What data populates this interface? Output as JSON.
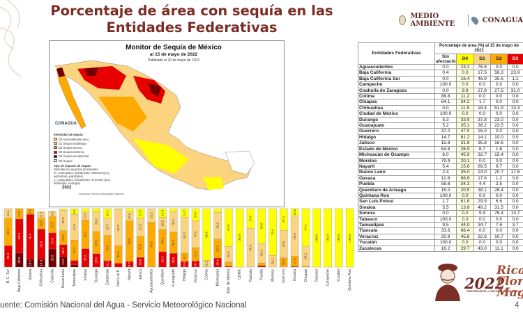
{
  "title_line1": "Porcentaje de área con sequía en las",
  "title_line2": "Entidades Federativas",
  "logos": {
    "medio_ambiente": "MEDIO AMBIENTE",
    "conagua": "CONAGUA"
  },
  "map": {
    "title": "Monitor de Sequía de México",
    "subtitle": "al 15 de mayo de 2022",
    "published": "Publicado el 20 de mayo de 2022",
    "logo": "CONAGUA",
    "legend_title": "Intensidad de sequía:",
    "legend": [
      {
        "label": "D0 Anormalmente seco",
        "color": "#ffff00"
      },
      {
        "label": "D1 Sequía moderada",
        "color": "#fcd37f"
      },
      {
        "label": "D2 Sequía severa",
        "color": "#ffaa00"
      },
      {
        "label": "D3 Sequía extrema",
        "color": "#e60000"
      },
      {
        "label": "D4 Sequía excepcional",
        "color": "#730000"
      },
      {
        "label": "D0 Sequía",
        "color": "#ffffff"
      }
    ],
    "impact_title": "Tipo de impacto de sequía:",
    "impacts": [
      "Delimitación impactos dominantes",
      "S= Corto plazo, típicamente <6meses (p.ej. agricultura, pastizales)",
      "L= Largo plazo, típicamente >6 meses (p.ej. hidrología, ecología)"
    ],
    "year": "2022",
    "credit": "Elaboración: Servicio Meteorológico Nacional"
  },
  "table": {
    "col_entity": "Entidades Federativas",
    "col_group": "Porcentaje de área (%) al 15 de mayo de 2022",
    "col_sin": "Sin afectación",
    "cols": [
      "D0",
      "D1",
      "D2",
      "D3"
    ],
    "rows": [
      [
        "Aguascalientes",
        "0.0",
        "23.2",
        "76.8",
        "0.0",
        "0.0"
      ],
      [
        "Baja California",
        "0.4",
        "0.0",
        "17.5",
        "58.3",
        "23.9"
      ],
      [
        "Baja California Sur",
        "0.0",
        "16.4",
        "46.9",
        "35.6",
        "1.1"
      ],
      [
        "Campeche",
        "100.0",
        "0.0",
        "0.0",
        "0.0",
        "0.0"
      ],
      [
        "Coahuila de Zaragoza",
        "0.0",
        "9.9",
        "27.8",
        "27.5",
        "31.0"
      ],
      [
        "Colima",
        "88.8",
        "11.2",
        "0.0",
        "0.0",
        "0.0"
      ],
      [
        "Chiapas",
        "64.1",
        "34.2",
        "1.7",
        "0.0",
        "0.0"
      ],
      [
        "Chihuahua",
        "0.0",
        "11.5",
        "18.4",
        "51.9",
        "13.3"
      ],
      [
        "Ciudad de México",
        "100.0",
        "0.0",
        "0.0",
        "0.0",
        "0.0"
      ],
      [
        "Durango",
        "5.3",
        "33.9",
        "37.8",
        "23.0",
        "0.0"
      ],
      [
        "Guanajuato",
        "5.2",
        "35.1",
        "36.2",
        "23.5",
        "0.0"
      ],
      [
        "Guerrero",
        "37.0",
        "47.0",
        "16.0",
        "0.0",
        "0.0"
      ],
      [
        "Hidalgo",
        "14.7",
        "61.2",
        "14.1",
        "10.0",
        "0.0"
      ],
      [
        "Jalisco",
        "15.8",
        "31.8",
        "35.8",
        "16.6",
        "0.0"
      ],
      [
        "Estado de México",
        "64.8",
        "26.9",
        "6.7",
        "1.6",
        "0.0"
      ],
      [
        "Michoacán de Ocampo",
        "6.0",
        "45.9",
        "32.7",
        "15.4",
        "0.0"
      ],
      [
        "Morelos",
        "79.9",
        "20.1",
        "0.0",
        "0.0",
        "0.0"
      ],
      [
        "Nayarit",
        "5.4",
        "15.6",
        "69.5",
        "9.7",
        "0.0"
      ],
      [
        "Nuevo León",
        "2.4",
        "35.0",
        "24.0",
        "20.7",
        "17.6"
      ],
      [
        "Oaxaca",
        "12.6",
        "68.6",
        "17.6",
        "1.2",
        "0.0"
      ],
      [
        "Puebla",
        "58.8",
        "34.3",
        "4.4",
        "2.5",
        "0.0"
      ],
      [
        "Querétaro de Arteaga",
        "15.0",
        "20.5",
        "38.1",
        "26.4",
        "0.0"
      ],
      [
        "Quintana Roo",
        "100.0",
        "0.0",
        "0.0",
        "0.0",
        "0.0"
      ],
      [
        "San Luis Potosí",
        "1.7",
        "61.8",
        "29.9",
        "6.6",
        "0.0"
      ],
      [
        "Sinaloa",
        "5.5",
        "13.8",
        "49.2",
        "31.5",
        "0.0"
      ],
      [
        "Sonora",
        "0.0",
        "0.0",
        "9.9",
        "76.4",
        "13.7"
      ],
      [
        "Tabasco",
        "100.0",
        "0.0",
        "0.0",
        "0.0",
        "0.0"
      ],
      [
        "Tamaulipas",
        "9.5",
        "44.0",
        "34.7",
        "7.6",
        "3.7"
      ],
      [
        "Tlaxcala",
        "33.6",
        "66.4",
        "0.0",
        "0.0",
        "0.0"
      ],
      [
        "Veracruz",
        "20.9",
        "45.8",
        "22.6",
        "10.7",
        "0.0"
      ],
      [
        "Yucatán",
        "100.0",
        "0.0",
        "0.0",
        "0.0",
        "0.0"
      ],
      [
        "Zacatecas",
        "16.2",
        "29.7",
        "43.0",
        "11.1",
        "0.0"
      ]
    ]
  },
  "chart_data": {
    "type": "bar",
    "stacked": true,
    "categories": [
      "B. C. Sur",
      "Baja California",
      "Sonora",
      "Chihuahua",
      "Coahuila",
      "Nuevo León",
      "Tamaulipas",
      "Sinaloa",
      "Durango",
      "Zacatecas",
      "San Luis P.",
      "Nayarit",
      "Jalisco",
      "Aguascalientes",
      "Querétaro",
      "Guanajuato",
      "Hidalgo",
      "Veracruz",
      "Colima",
      "Michoacán",
      "Edo. de México",
      "CDMX",
      "Tlaxcala",
      "Puebla",
      "Morelos",
      "Guerrero",
      "Oaxaca",
      "Chiapas",
      "Tabasco",
      "Campeche",
      "Yucatán",
      "Quintana Roo"
    ],
    "series": [
      {
        "name": "D4",
        "color": "#730000",
        "values": [
          1.1,
          23.9,
          13.7,
          13.3,
          31.0,
          17.6,
          3.7,
          0,
          0,
          0,
          0,
          0,
          0,
          0,
          0,
          0,
          0,
          0,
          0,
          0,
          0,
          0,
          0,
          0,
          0,
          0,
          0,
          0,
          0,
          0,
          0,
          0
        ]
      },
      {
        "name": "D3",
        "color": "#e60000",
        "values": [
          35.6,
          58.3,
          76.4,
          51.9,
          27.5,
          20.7,
          7.6,
          31.5,
          23.0,
          11.1,
          6.6,
          9.7,
          16.6,
          0,
          26.4,
          23.5,
          10.0,
          10.7,
          0,
          15.4,
          1.6,
          0,
          0,
          2.5,
          0,
          0,
          1.2,
          0,
          0,
          0,
          0,
          0
        ]
      },
      {
        "name": "D2",
        "color": "#ffaa00",
        "values": [
          46.9,
          17.5,
          9.9,
          18.4,
          27.8,
          24.0,
          34.7,
          49.2,
          37.8,
          43.0,
          29.9,
          69.5,
          35.8,
          76.8,
          38.1,
          36.2,
          14.1,
          22.6,
          0,
          32.7,
          6.7,
          0,
          0,
          4.4,
          0,
          16.0,
          17.6,
          1.7,
          0,
          0,
          0,
          0
        ]
      },
      {
        "name": "D1",
        "color": "#fcd37f",
        "values": [
          16.4,
          0,
          0,
          11.5,
          9.9,
          35.0,
          44.0,
          13.8,
          33.9,
          29.7,
          61.8,
          15.6,
          31.8,
          23.2,
          20.5,
          35.1,
          61.2,
          45.8,
          11.2,
          45.9,
          26.9,
          0,
          66.4,
          34.3,
          20.1,
          47.0,
          68.6,
          34.2,
          0,
          0,
          0,
          0
        ]
      },
      {
        "name": "D0",
        "color": "#ffff00",
        "values": [
          0,
          0.4,
          0,
          0,
          0,
          2.4,
          9.5,
          5.5,
          5.3,
          16.2,
          1.7,
          5.4,
          15.8,
          0,
          15.0,
          5.2,
          14.7,
          20.9,
          88.8,
          6.0,
          64.8,
          100.0,
          33.6,
          58.8,
          79.9,
          37.0,
          12.6,
          64.1,
          100.0,
          100.0,
          100.0,
          100.0
        ]
      }
    ],
    "ylim": [
      0,
      100
    ]
  },
  "footer": {
    "source": "uente: Comisión Nacional del Agua - Servicio Meteorológico Nacional",
    "page": "4"
  },
  "banner": {
    "year": "2022",
    "name": "Ricar Flore Magó",
    "tag": "PRECURSOR DE LA REVOLUCIÓN MEXICANA",
    "aside": "Año de"
  }
}
